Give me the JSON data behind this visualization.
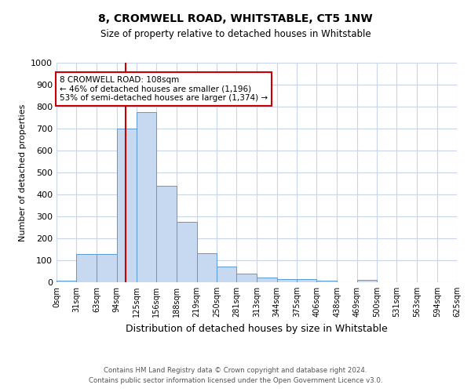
{
  "title1": "8, CROMWELL ROAD, WHITSTABLE, CT5 1NW",
  "title2": "Size of property relative to detached houses in Whitstable",
  "xlabel": "Distribution of detached houses by size in Whitstable",
  "ylabel": "Number of detached properties",
  "bin_edges": [
    0,
    31,
    63,
    94,
    125,
    156,
    188,
    219,
    250,
    281,
    313,
    344,
    375,
    406,
    438,
    469,
    500,
    531,
    563,
    594,
    625
  ],
  "bar_heights": [
    7,
    128,
    128,
    700,
    775,
    440,
    275,
    133,
    70,
    40,
    22,
    13,
    13,
    7,
    0,
    10,
    0,
    0,
    0,
    0
  ],
  "bar_color": "#c6d9f0",
  "bar_edge_color": "#5b9bd5",
  "red_line_x": 108,
  "ylim": [
    0,
    1000
  ],
  "annotation_text": "8 CROMWELL ROAD: 108sqm\n← 46% of detached houses are smaller (1,196)\n53% of semi-detached houses are larger (1,374) →",
  "annotation_box_color": "#ffffff",
  "annotation_box_edge_color": "#cc0000",
  "footer1": "Contains HM Land Registry data © Crown copyright and database right 2024.",
  "footer2": "Contains public sector information licensed under the Open Government Licence v3.0.",
  "tick_labels": [
    "0sqm",
    "31sqm",
    "63sqm",
    "94sqm",
    "125sqm",
    "156sqm",
    "188sqm",
    "219sqm",
    "250sqm",
    "281sqm",
    "313sqm",
    "344sqm",
    "375sqm",
    "406sqm",
    "438sqm",
    "469sqm",
    "500sqm",
    "531sqm",
    "563sqm",
    "594sqm",
    "625sqm"
  ],
  "yticks": [
    0,
    100,
    200,
    300,
    400,
    500,
    600,
    700,
    800,
    900,
    1000
  ],
  "background_color": "#ffffff",
  "grid_color": "#c8d4e8"
}
